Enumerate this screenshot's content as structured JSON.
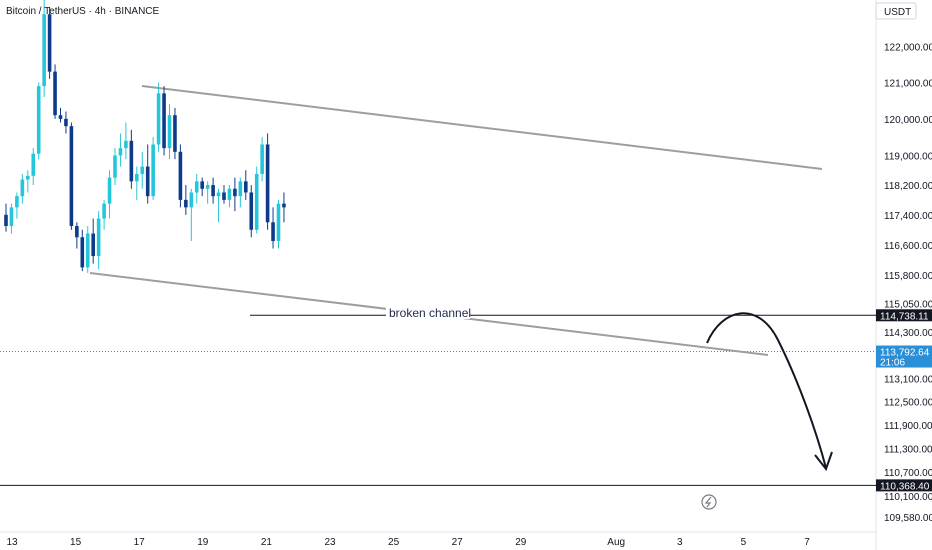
{
  "header": {
    "title": "Bitcoin / TetherUS · 4h · BINANCE"
  },
  "currency_button": {
    "label": "USDT"
  },
  "annotation": {
    "text": "broken channel"
  },
  "price_tags": [
    {
      "value": 114738.11,
      "label": "114,738.11",
      "bg": "#131722",
      "fg": "#ffffff"
    },
    {
      "value": 113792.64,
      "label": "113,792.64",
      "sub": "21:06",
      "bg": "#2a8fd6",
      "fg": "#ffffff"
    },
    {
      "value": 110368.4,
      "label": "110,368.40",
      "bg": "#131722",
      "fg": "#ffffff"
    }
  ],
  "colors": {
    "up": "#26c6da",
    "down": "#0d3b8a",
    "channel": "#9e9e9e",
    "hline": "#131722",
    "current": "#2a8fd6"
  },
  "icons": {
    "lightning": "lightning-icon"
  },
  "chart_data": {
    "type": "candlestick",
    "y_scale": "log",
    "ylim": [
      109200,
      123300
    ],
    "xlim": [
      0,
      54
    ],
    "x_ticks": [
      {
        "label": "13",
        "x": 0
      },
      {
        "label": "15",
        "x": 12
      },
      {
        "label": "17",
        "x": 24
      },
      {
        "label": "19",
        "x": 36
      },
      {
        "label": "21",
        "x": 48
      },
      {
        "label": "23",
        "x": 60
      },
      {
        "label": "25",
        "x": 72
      },
      {
        "label": "27",
        "x": 84
      },
      {
        "label": "29",
        "x": 96
      },
      {
        "label": "Aug",
        "x": 114
      },
      {
        "label": "3",
        "x": 126
      },
      {
        "label": "5",
        "x": 138
      },
      {
        "label": "7",
        "x": 150
      }
    ],
    "y_ticks": [
      122000,
      121000,
      120000,
      119000,
      118200,
      117400,
      116600,
      115800,
      115050,
      114300,
      113100,
      112500,
      111900,
      111300,
      110700,
      110100,
      109580
    ],
    "y_tick_labels": [
      "122,000.00",
      "121,000.00",
      "120,000.00",
      "119,000.00",
      "118,200.00",
      "117,400.00",
      "116,600.00",
      "115,800.00",
      "115,050.00",
      "114,300.00",
      "113,100.00",
      "112,500.00",
      "111,900.00",
      "111,300.00",
      "110,700.00",
      "110,100.00",
      "109,580.00"
    ],
    "candles": [
      [
        0,
        117400,
        117700,
        116950,
        117100
      ],
      [
        1,
        117100,
        117700,
        116900,
        117600
      ],
      [
        2,
        117600,
        118000,
        117300,
        117900
      ],
      [
        3,
        117900,
        118500,
        117700,
        118350
      ],
      [
        4,
        118350,
        118600,
        118000,
        118450
      ],
      [
        5,
        118450,
        119200,
        118200,
        119050
      ],
      [
        6,
        119050,
        121000,
        118900,
        120900
      ],
      [
        7,
        120900,
        123300,
        120600,
        122900
      ],
      [
        8,
        122900,
        123100,
        121100,
        121300
      ],
      [
        9,
        121300,
        121500,
        120000,
        120100
      ],
      [
        10,
        120100,
        120300,
        119900,
        120000
      ],
      [
        11,
        120000,
        120200,
        119600,
        119800
      ],
      [
        12,
        119800,
        119900,
        117000,
        117100
      ],
      [
        13,
        117100,
        117200,
        116500,
        116800
      ],
      [
        14,
        116800,
        117000,
        115900,
        116000
      ],
      [
        15,
        116000,
        117100,
        115850,
        116900
      ],
      [
        16,
        116900,
        117300,
        116100,
        116300
      ],
      [
        17,
        116300,
        117500,
        115950,
        117300
      ],
      [
        18,
        117300,
        117800,
        117000,
        117700
      ],
      [
        19,
        117700,
        118600,
        117300,
        118400
      ],
      [
        20,
        118400,
        119200,
        118200,
        119000
      ],
      [
        21,
        119000,
        119600,
        118700,
        119200
      ],
      [
        22,
        119200,
        119900,
        118900,
        119400
      ],
      [
        23,
        119400,
        119700,
        118100,
        118300
      ],
      [
        24,
        118300,
        118700,
        117800,
        118500
      ],
      [
        25,
        118500,
        119100,
        118100,
        118700
      ],
      [
        26,
        118700,
        119300,
        117700,
        117900
      ],
      [
        27,
        117900,
        119500,
        117800,
        119300
      ],
      [
        28,
        119300,
        121000,
        119100,
        120700
      ],
      [
        29,
        120700,
        120900,
        119000,
        119200
      ],
      [
        30,
        119200,
        120400,
        118900,
        120100
      ],
      [
        31,
        120100,
        120300,
        118900,
        119100
      ],
      [
        32,
        119100,
        119300,
        117600,
        117800
      ],
      [
        33,
        117800,
        118200,
        117400,
        117600
      ],
      [
        34,
        117600,
        118100,
        116700,
        118000
      ],
      [
        35,
        118000,
        118500,
        117700,
        118300
      ],
      [
        36,
        118300,
        118400,
        117900,
        118100
      ],
      [
        37,
        118100,
        118300,
        117700,
        118200
      ],
      [
        38,
        118200,
        118400,
        117700,
        117900
      ],
      [
        39,
        117900,
        118100,
        117200,
        118000
      ],
      [
        40,
        118000,
        118200,
        117700,
        117800
      ],
      [
        41,
        117800,
        118200,
        117600,
        118100
      ],
      [
        42,
        118100,
        118400,
        117500,
        117900
      ],
      [
        43,
        117900,
        118400,
        117600,
        118300
      ],
      [
        44,
        118300,
        118600,
        117800,
        118000
      ],
      [
        45,
        118000,
        118200,
        116800,
        117000
      ],
      [
        46,
        117000,
        118700,
        116900,
        118500
      ],
      [
        47,
        118500,
        119500,
        118300,
        119300
      ],
      [
        48,
        119300,
        119600,
        117000,
        117200
      ],
      [
        49,
        117200,
        117600,
        116500,
        116700
      ],
      [
        50,
        116700,
        117800,
        116500,
        117700
      ],
      [
        51,
        117700,
        118000,
        117200,
        117600
      ]
    ]
  }
}
